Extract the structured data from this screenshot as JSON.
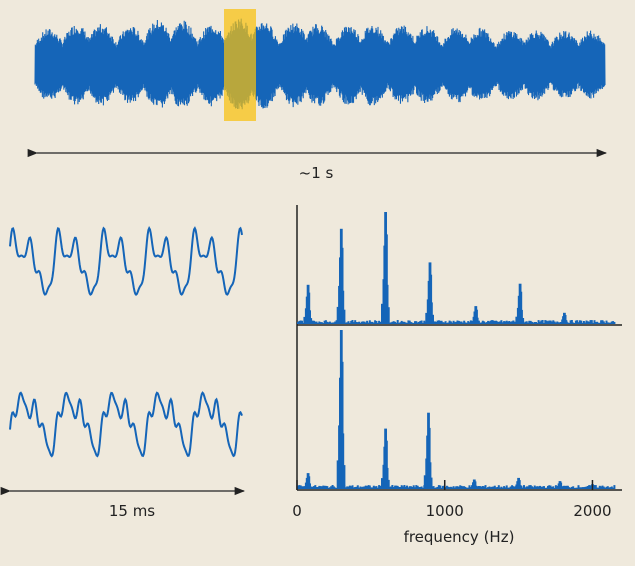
{
  "colors": {
    "background": "#efe9dc",
    "signal": "#1565b8",
    "highlight": "#f8c10e",
    "axis": "#222222"
  },
  "top_panel": {
    "duration_label": "~1 s",
    "envelope_peaks": [
      0.55,
      0.62,
      0.78,
      0.6,
      0.7,
      0.9,
      0.65,
      0.75,
      0.95,
      0.6,
      0.85,
      0.55,
      0.8,
      0.6,
      0.75,
      0.55,
      0.7,
      0.5,
      0.62,
      0.5,
      0.58,
      0.5
    ]
  },
  "bottom_left_panel": {
    "duration_label": "15 ms"
  },
  "chart_data": {
    "type": "bar",
    "xlabel": "frequency (Hz)",
    "xlim": [
      0,
      2200
    ],
    "xticks": [
      0,
      1000,
      2000
    ],
    "tick_labels": [
      "0",
      "1000",
      "2000"
    ],
    "series": [
      {
        "peaks": [
          [
            75,
            0.35
          ],
          [
            300,
            0.85
          ],
          [
            600,
            1.0
          ],
          [
            900,
            0.55
          ],
          [
            1210,
            0.16
          ],
          [
            1510,
            0.36
          ],
          [
            1810,
            0.1
          ]
        ]
      },
      {
        "peaks": [
          [
            75,
            0.1
          ],
          [
            300,
            1.0
          ],
          [
            600,
            0.38
          ],
          [
            890,
            0.48
          ],
          [
            1200,
            0.06
          ],
          [
            1500,
            0.07
          ],
          [
            1780,
            0.05
          ],
          [
            2000,
            0.03
          ]
        ]
      }
    ]
  }
}
